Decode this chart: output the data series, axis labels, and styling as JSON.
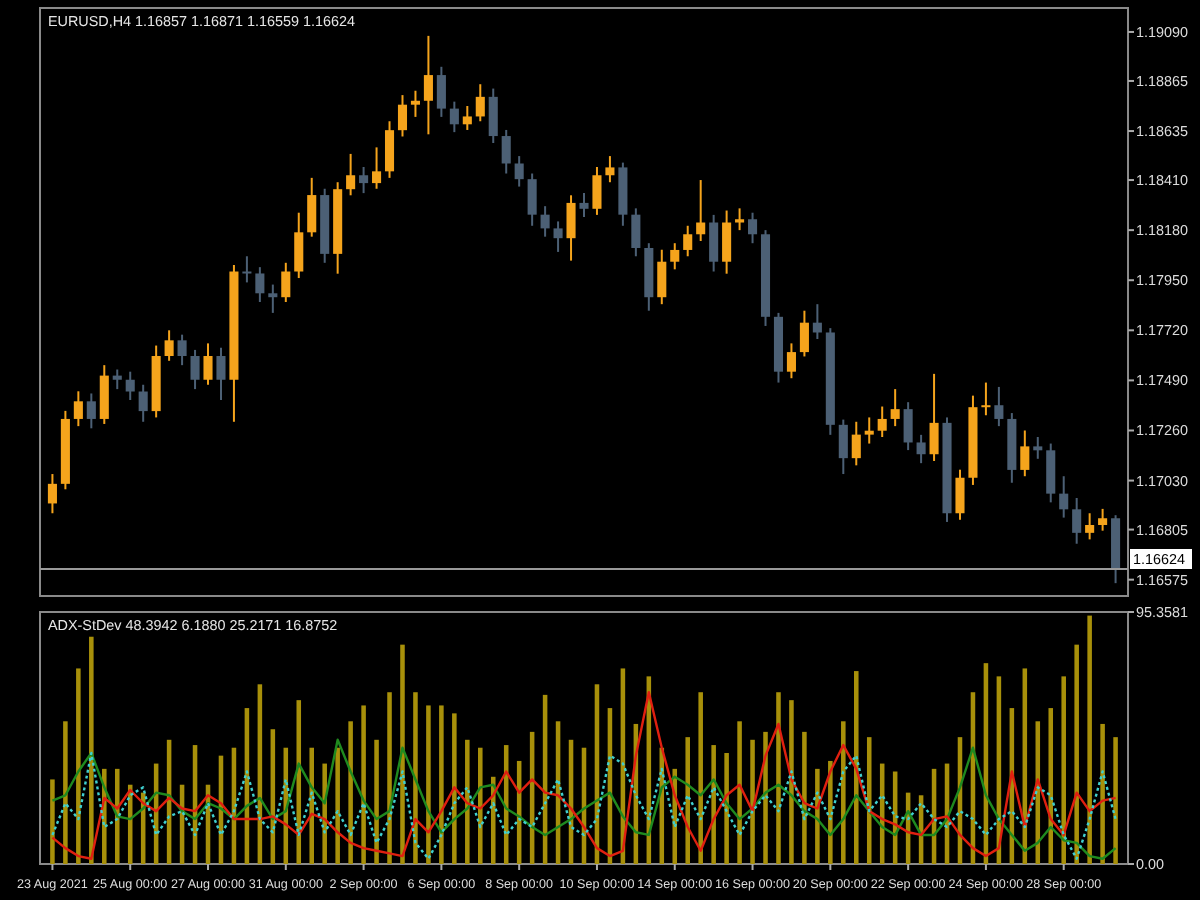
{
  "chart_data": [
    {
      "type": "candlestick",
      "title": "EURUSD,H4 1.16857 1.16871 1.16559 1.16624",
      "tick_labels": "y",
      "ylim": [
        1.165,
        1.192
      ],
      "yticks": [
        {
          "value": 1.16575,
          "label": "1.16575"
        },
        {
          "value": 1.16805,
          "label": "1.16805"
        },
        {
          "value": 1.1703,
          "label": "1.17030"
        },
        {
          "value": 1.1726,
          "label": "1.17260"
        },
        {
          "value": 1.1749,
          "label": "1.17490"
        },
        {
          "value": 1.1772,
          "label": "1.17720"
        },
        {
          "value": 1.1795,
          "label": "1.17950"
        },
        {
          "value": 1.1818,
          "label": "1.18180"
        },
        {
          "value": 1.1841,
          "label": "1.18410"
        },
        {
          "value": 1.18635,
          "label": "1.18635"
        },
        {
          "value": 1.18865,
          "label": "1.18865"
        },
        {
          "value": 1.1909,
          "label": "1.19090"
        }
      ],
      "ref_lines": [
        {
          "axis": "y",
          "value": 1.16624,
          "label": "1.16624",
          "color": "#9a9a9a"
        }
      ],
      "ohlc": [
        [
          1.16925,
          1.1706,
          1.1688,
          1.17015
        ],
        [
          1.17015,
          1.1735,
          1.1699,
          1.17313
        ],
        [
          1.17313,
          1.1744,
          1.1728,
          1.17394
        ],
        [
          1.17394,
          1.1743,
          1.1727,
          1.17313
        ],
        [
          1.17313,
          1.1756,
          1.1729,
          1.17512
        ],
        [
          1.17512,
          1.1754,
          1.1745,
          1.17493
        ],
        [
          1.17493,
          1.1753,
          1.174,
          1.17439
        ],
        [
          1.17439,
          1.1747,
          1.173,
          1.17349
        ],
        [
          1.17349,
          1.1765,
          1.1732,
          1.17602
        ],
        [
          1.17602,
          1.1772,
          1.1758,
          1.17674
        ],
        [
          1.17674,
          1.177,
          1.1756,
          1.17602
        ],
        [
          1.17602,
          1.1763,
          1.1745,
          1.17493
        ],
        [
          1.17493,
          1.1766,
          1.1747,
          1.17602
        ],
        [
          1.17602,
          1.1764,
          1.174,
          1.17493
        ],
        [
          1.17493,
          1.1802,
          1.173,
          1.1799
        ],
        [
          1.1799,
          1.1806,
          1.1794,
          1.17981
        ],
        [
          1.17981,
          1.1801,
          1.1785,
          1.1789
        ],
        [
          1.1789,
          1.1793,
          1.178,
          1.17872
        ],
        [
          1.17872,
          1.1803,
          1.1785,
          1.1799
        ],
        [
          1.1799,
          1.1826,
          1.1796,
          1.1817
        ],
        [
          1.1817,
          1.1842,
          1.1815,
          1.18341
        ],
        [
          1.18341,
          1.1837,
          1.1803,
          1.18071
        ],
        [
          1.18071,
          1.184,
          1.1798,
          1.18368
        ],
        [
          1.18368,
          1.1853,
          1.1834,
          1.18432
        ],
        [
          1.18432,
          1.1847,
          1.1835,
          1.18396
        ],
        [
          1.18396,
          1.1856,
          1.1837,
          1.1845
        ],
        [
          1.1845,
          1.1868,
          1.1842,
          1.18639
        ],
        [
          1.18639,
          1.188,
          1.1861,
          1.18756
        ],
        [
          1.18756,
          1.1882,
          1.187,
          1.18774
        ],
        [
          1.18774,
          1.19072,
          1.1862,
          1.18892
        ],
        [
          1.18892,
          1.1893,
          1.187,
          1.18738
        ],
        [
          1.18738,
          1.1877,
          1.1863,
          1.18666
        ],
        [
          1.18666,
          1.1875,
          1.1864,
          1.18702
        ],
        [
          1.18702,
          1.1885,
          1.1868,
          1.18792
        ],
        [
          1.18792,
          1.1883,
          1.1858,
          1.18612
        ],
        [
          1.18612,
          1.1864,
          1.1844,
          1.18486
        ],
        [
          1.18486,
          1.1852,
          1.1838,
          1.18414
        ],
        [
          1.18414,
          1.1844,
          1.182,
          1.18251
        ],
        [
          1.18251,
          1.1829,
          1.1815,
          1.18188
        ],
        [
          1.18188,
          1.1822,
          1.1808,
          1.18143
        ],
        [
          1.18143,
          1.1834,
          1.1804,
          1.18305
        ],
        [
          1.18305,
          1.1835,
          1.1824,
          1.18278
        ],
        [
          1.18278,
          1.1847,
          1.1825,
          1.18432
        ],
        [
          1.18432,
          1.1852,
          1.184,
          1.18468
        ],
        [
          1.18468,
          1.1849,
          1.182,
          1.18251
        ],
        [
          1.18251,
          1.1828,
          1.1806,
          1.18098
        ],
        [
          1.18098,
          1.1812,
          1.1781,
          1.17872
        ],
        [
          1.17872,
          1.1809,
          1.1784,
          1.18035
        ],
        [
          1.18035,
          1.1812,
          1.18,
          1.18089
        ],
        [
          1.18089,
          1.182,
          1.1806,
          1.18161
        ],
        [
          1.18161,
          1.1841,
          1.1813,
          1.18215
        ],
        [
          1.18215,
          1.1825,
          1.1799,
          1.18035
        ],
        [
          1.18035,
          1.1827,
          1.1798,
          1.18215
        ],
        [
          1.18215,
          1.1828,
          1.1818,
          1.1823
        ],
        [
          1.1823,
          1.1826,
          1.1812,
          1.18161
        ],
        [
          1.18161,
          1.1818,
          1.1774,
          1.17782
        ],
        [
          1.17782,
          1.178,
          1.1748,
          1.1753
        ],
        [
          1.1753,
          1.1766,
          1.175,
          1.1762
        ],
        [
          1.1762,
          1.1781,
          1.176,
          1.17755
        ],
        [
          1.17755,
          1.1784,
          1.1768,
          1.1771
        ],
        [
          1.1771,
          1.1773,
          1.1724,
          1.17286
        ],
        [
          1.17286,
          1.1731,
          1.1706,
          1.17133
        ],
        [
          1.17133,
          1.173,
          1.171,
          1.17241
        ],
        [
          1.17241,
          1.1732,
          1.172,
          1.17259
        ],
        [
          1.17259,
          1.1737,
          1.1723,
          1.17313
        ],
        [
          1.17313,
          1.1745,
          1.1728,
          1.17358
        ],
        [
          1.17358,
          1.1739,
          1.1717,
          1.17205
        ],
        [
          1.17205,
          1.1724,
          1.1711,
          1.17151
        ],
        [
          1.17151,
          1.1752,
          1.1712,
          1.17295
        ],
        [
          1.17295,
          1.1732,
          1.1684,
          1.1688
        ],
        [
          1.1688,
          1.1708,
          1.1685,
          1.17043
        ],
        [
          1.17043,
          1.1742,
          1.1701,
          1.17367
        ],
        [
          1.17367,
          1.1748,
          1.1733,
          1.17376
        ],
        [
          1.17376,
          1.1746,
          1.1728,
          1.17313
        ],
        [
          1.17313,
          1.1734,
          1.1702,
          1.17079
        ],
        [
          1.17079,
          1.1726,
          1.1705,
          1.17187
        ],
        [
          1.17187,
          1.1723,
          1.1713,
          1.17169
        ],
        [
          1.17169,
          1.172,
          1.1693,
          1.1697
        ],
        [
          1.1697,
          1.1705,
          1.1686,
          1.16898
        ],
        [
          1.16898,
          1.1695,
          1.1674,
          1.1679
        ],
        [
          1.1679,
          1.1688,
          1.1676,
          1.16826
        ],
        [
          1.16826,
          1.169,
          1.168,
          1.16857
        ],
        [
          1.16857,
          1.16871,
          1.16559,
          1.16624
        ]
      ],
      "colors": [
        "#f5a41c",
        "#f5a41c",
        "#f5a41c",
        "#4c6075",
        "#f5a41c",
        "#4c6075",
        "#4c6075",
        "#4c6075",
        "#f5a41c",
        "#f5a41c",
        "#4c6075",
        "#4c6075",
        "#f5a41c",
        "#4c6075",
        "#f5a41c",
        "#4c6075",
        "#4c6075",
        "#4c6075",
        "#f5a41c",
        "#f5a41c",
        "#f5a41c",
        "#4c6075",
        "#f5a41c",
        "#f5a41c",
        "#4c6075",
        "#f5a41c",
        "#f5a41c",
        "#f5a41c",
        "#f5a41c",
        "#f5a41c",
        "#4c6075",
        "#4c6075",
        "#f5a41c",
        "#f5a41c",
        "#4c6075",
        "#4c6075",
        "#4c6075",
        "#4c6075",
        "#4c6075",
        "#4c6075",
        "#f5a41c",
        "#4c6075",
        "#f5a41c",
        "#f5a41c",
        "#4c6075",
        "#4c6075",
        "#4c6075",
        "#f5a41c",
        "#f5a41c",
        "#f5a41c",
        "#f5a41c",
        "#4c6075",
        "#f5a41c",
        "#f5a41c",
        "#4c6075",
        "#4c6075",
        "#4c6075",
        "#f5a41c",
        "#f5a41c",
        "#4c6075",
        "#4c6075",
        "#4c6075",
        "#f5a41c",
        "#f5a41c",
        "#f5a41c",
        "#f5a41c",
        "#4c6075",
        "#4c6075",
        "#f5a41c",
        "#4c6075",
        "#f5a41c",
        "#f5a41c",
        "#f5a41c",
        "#4c6075",
        "#4c6075",
        "#f5a41c",
        "#4c6075",
        "#4c6075",
        "#4c6075",
        "#4c6075",
        "#f5a41c",
        "#f5a41c",
        "#4c6075"
      ]
    },
    {
      "type": "bar",
      "title": "ADX-StDev 48.3942 6.1880 25.2171 16.8752",
      "categories": [
        "23 Aug 2021",
        null,
        null,
        null,
        null,
        null,
        "25 Aug 00:00",
        null,
        null,
        null,
        null,
        null,
        "27 Aug 00:00",
        null,
        null,
        null,
        null,
        null,
        "31 Aug 00:00",
        null,
        null,
        null,
        null,
        null,
        "2 Sep 00:00",
        null,
        null,
        null,
        null,
        null,
        "6 Sep 00:00",
        null,
        null,
        null,
        null,
        null,
        "8 Sep 00:00",
        null,
        null,
        null,
        null,
        null,
        "10 Sep 00:00",
        null,
        null,
        null,
        null,
        null,
        "14 Sep 00:00",
        null,
        null,
        null,
        null,
        null,
        "16 Sep 00:00",
        null,
        null,
        null,
        null,
        null,
        "20 Sep 00:00",
        null,
        null,
        null,
        null,
        null,
        "22 Sep 00:00",
        null,
        null,
        null,
        null,
        null,
        "24 Sep 00:00",
        null,
        null,
        null,
        null,
        null,
        "28 Sep 00:00",
        null,
        null,
        null,
        null
      ],
      "ylim": [
        0,
        95.3581
      ],
      "yticks": [
        {
          "value": 0,
          "label": "0.00"
        },
        95.3581
      ],
      "series": [
        {
          "type": "bar",
          "color": "#a8900a",
          "values": [
            32,
            54,
            74,
            86,
            36,
            36,
            30,
            27,
            38,
            47,
            30,
            45,
            30,
            41,
            44,
            59,
            68,
            51,
            44,
            62,
            44,
            38,
            44,
            54,
            60,
            47,
            65,
            83,
            65,
            60,
            60,
            57,
            47,
            44,
            33,
            45,
            39,
            50,
            64,
            54,
            47,
            44,
            68,
            59,
            74,
            53,
            71,
            44,
            36,
            48,
            65,
            45,
            42,
            54,
            47,
            50,
            65,
            62,
            50,
            36,
            39,
            54,
            73,
            48,
            38,
            35,
            27,
            26,
            36,
            38,
            48,
            65,
            76,
            71,
            59,
            74,
            54,
            59,
            71,
            83,
            94,
            53,
            48
          ]
        },
        {
          "type": "line",
          "color": "#1f8a1f",
          "values": [
            24,
            26,
            35,
            42,
            29,
            18,
            17,
            21,
            27,
            26,
            20,
            17,
            23,
            21,
            17,
            22,
            25,
            17,
            20,
            38,
            29,
            23,
            47,
            35,
            24,
            17,
            20,
            44,
            32,
            20,
            12,
            17,
            21,
            29,
            30,
            21,
            18,
            14,
            11,
            14,
            17,
            21,
            24,
            27,
            18,
            12,
            11,
            29,
            33,
            30,
            26,
            32,
            23,
            17,
            21,
            27,
            30,
            26,
            20,
            17,
            11,
            17,
            26,
            20,
            14,
            11,
            20,
            11,
            11,
            17,
            29,
            44,
            26,
            17,
            11,
            5,
            8,
            14,
            9,
            8,
            3,
            2,
            6
          ]
        },
        {
          "type": "line",
          "color": "#e02010",
          "values": [
            10,
            6,
            3,
            2,
            25,
            21,
            28,
            23,
            20,
            25,
            21,
            20,
            26,
            23,
            17,
            17,
            17,
            18,
            15,
            11,
            19,
            17,
            12,
            8,
            6,
            5,
            4,
            3,
            17,
            12,
            20,
            29,
            23,
            21,
            26,
            35,
            27,
            32,
            27,
            26,
            21,
            14,
            6,
            3,
            5,
            41,
            65,
            44,
            26,
            14,
            5,
            17,
            26,
            30,
            20,
            41,
            53,
            32,
            23,
            21,
            35,
            45,
            36,
            20,
            17,
            15,
            12,
            11,
            17,
            18,
            11,
            6,
            3,
            6,
            35,
            14,
            32,
            17,
            11,
            27,
            20,
            24,
            25
          ]
        },
        {
          "type": "line",
          "color": "#40d0d0",
          "line_style": "dotted",
          "values": [
            11,
            23,
            17,
            42,
            14,
            17,
            26,
            29,
            11,
            18,
            20,
            11,
            23,
            11,
            20,
            35,
            17,
            12,
            32,
            11,
            27,
            12,
            20,
            11,
            23,
            8,
            17,
            35,
            8,
            2,
            11,
            23,
            29,
            14,
            23,
            11,
            17,
            14,
            23,
            32,
            14,
            11,
            17,
            41,
            38,
            26,
            17,
            36,
            14,
            26,
            17,
            29,
            20,
            11,
            20,
            26,
            20,
            35,
            17,
            27,
            17,
            35,
            41,
            20,
            26,
            18,
            17,
            23,
            17,
            14,
            20,
            17,
            11,
            17,
            20,
            14,
            29,
            26,
            11,
            2,
            17,
            35,
            17
          ]
        }
      ]
    }
  ]
}
